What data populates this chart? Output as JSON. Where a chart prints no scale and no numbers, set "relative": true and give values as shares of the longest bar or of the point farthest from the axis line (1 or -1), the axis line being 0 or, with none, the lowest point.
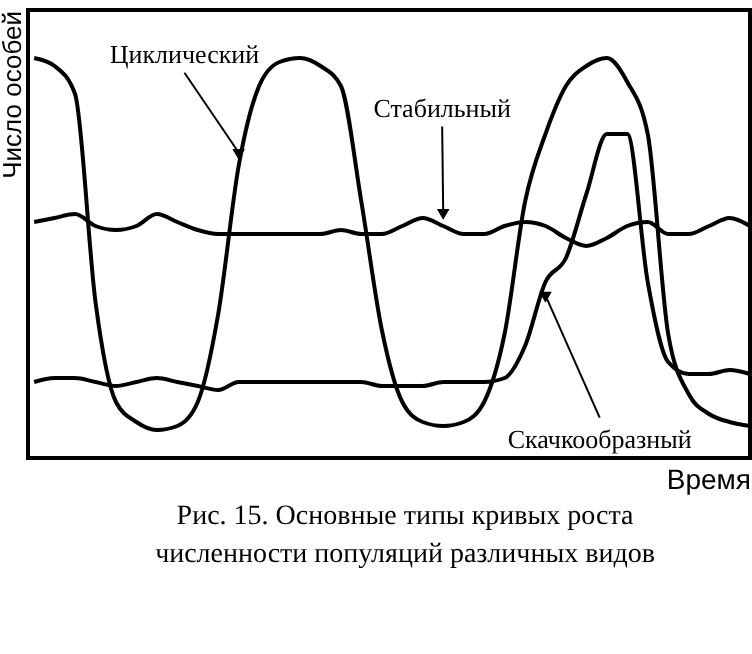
{
  "chart_data": {
    "type": "line",
    "relative": true,
    "ylabel": "Число особей",
    "xlabel": "Время",
    "annotations": [
      "Рис. 15. Основные типы кривых роста численности популяций различных видов"
    ],
    "categories": [
      null,
      null,
      null,
      null,
      null,
      null,
      null,
      null,
      null,
      null,
      null,
      null,
      null,
      null,
      null,
      null,
      null,
      null,
      null,
      null,
      null,
      null,
      null,
      null,
      null,
      null,
      null,
      null,
      null,
      null,
      null,
      null,
      null,
      null,
      null,
      null
    ],
    "tick_labels": false,
    "marker": "none",
    "line_style": "solid",
    "series": [
      {
        "name": "Циклический",
        "color": "#000000",
        "values": [
          1.0,
          0.98,
          0.91,
          0.39,
          0.14,
          0.09,
          0.07,
          0.08,
          0.14,
          0.36,
          0.73,
          0.93,
          0.99,
          1.0,
          0.98,
          0.93,
          0.64,
          0.32,
          0.14,
          0.09,
          0.08,
          0.09,
          0.14,
          0.31,
          0.64,
          0.81,
          0.93,
          0.98,
          1.0,
          0.94,
          0.81,
          0.31,
          0.16,
          0.11,
          0.09,
          0.08
        ]
      },
      {
        "name": "Стабильный",
        "color": "#000000",
        "values": [
          0.59,
          0.6,
          0.61,
          0.58,
          0.57,
          0.58,
          0.61,
          0.59,
          0.57,
          0.56,
          0.56,
          0.56,
          0.56,
          0.56,
          0.56,
          0.57,
          0.56,
          0.56,
          0.58,
          0.6,
          0.58,
          0.56,
          0.56,
          0.58,
          0.59,
          0.58,
          0.55,
          0.53,
          0.55,
          0.58,
          0.59,
          0.56,
          0.56,
          0.58,
          0.6,
          0.58
        ]
      },
      {
        "name": "Скачкообразный",
        "color": "#000000",
        "values": [
          0.19,
          0.2,
          0.2,
          0.19,
          0.18,
          0.19,
          0.2,
          0.19,
          0.18,
          0.17,
          0.19,
          0.19,
          0.19,
          0.19,
          0.19,
          0.19,
          0.19,
          0.18,
          0.18,
          0.18,
          0.19,
          0.19,
          0.19,
          0.2,
          0.28,
          0.44,
          0.5,
          0.66,
          0.81,
          0.81,
          0.44,
          0.24,
          0.21,
          0.21,
          0.22,
          0.21
        ]
      }
    ]
  }
}
